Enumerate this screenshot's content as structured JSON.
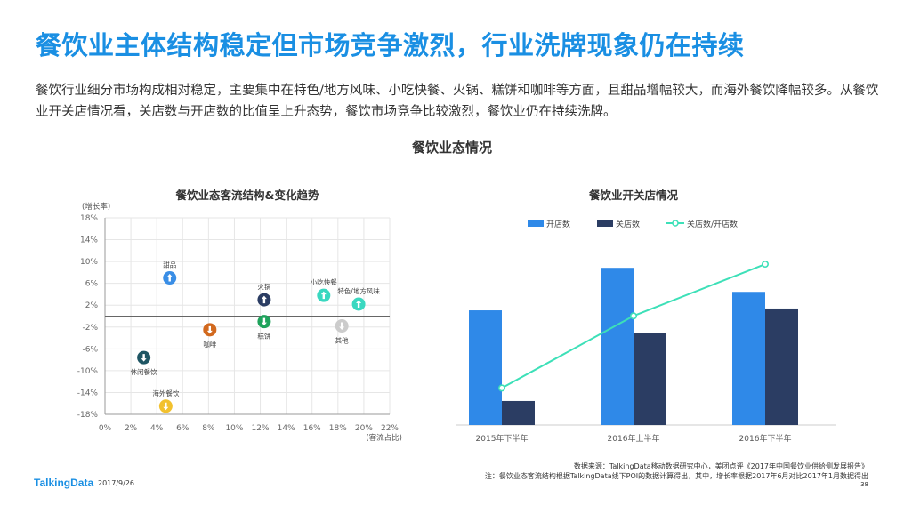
{
  "page": {
    "title": "餐饮业主体结构稳定但市场竞争激烈，行业洗牌现象仍在持续",
    "description": "餐饮行业细分市场构成相对稳定，主要集中在特色/地方风味、小吃快餐、火锅、糕饼和咖啡等方面，且甜品增幅较大，而海外餐饮降幅较多。从餐饮业开关店情况看，关店数与开店数的比值呈上升态势，餐饮市场竞争比较激烈，餐饮业仍在持续洗牌。",
    "section_title": "餐饮业态情况",
    "footer": {
      "logo": "TalkingData",
      "date": "2017/9/26",
      "source": "数据来源：TalkingData移动数据研究中心，美团点评《2017年中国餐饮业供给侧发展报告》",
      "note": "注：餐饮业态客流结构根据TalkingData线下POI的数据计算得出，其中，增长率根据2017年6月对比2017年1月数据得出",
      "page_number": "38"
    }
  },
  "chart_data": [
    {
      "type": "scatter",
      "title": "餐饮业态客流结构&变化趋势",
      "xlabel": "(客流占比)",
      "ylabel": "(增长率)",
      "xlim": [
        0,
        22
      ],
      "ylim": [
        -18,
        18
      ],
      "x_ticks": [
        "0%",
        "2%",
        "4%",
        "6%",
        "8%",
        "10%",
        "12%",
        "14%",
        "16%",
        "18%",
        "20%",
        "22%"
      ],
      "y_ticks": [
        "18%",
        "14%",
        "10%",
        "6%",
        "2%",
        "-2%",
        "-6%",
        "-10%",
        "-14%",
        "-18%"
      ],
      "grid": true,
      "points": [
        {
          "name": "甜品",
          "x": 5.0,
          "y": 7.0,
          "color": "#3a8ee6",
          "direction": "up",
          "label_pos": "above"
        },
        {
          "name": "火锅",
          "x": 12.3,
          "y": 3.0,
          "color": "#2b3d63",
          "direction": "up",
          "label_pos": "above"
        },
        {
          "name": "小吃快餐",
          "x": 16.9,
          "y": 3.8,
          "color": "#3ad8c0",
          "direction": "up",
          "label_pos": "above"
        },
        {
          "name": "特色/地方风味",
          "x": 19.6,
          "y": 2.2,
          "color": "#3ad8c0",
          "direction": "up",
          "label_pos": "above"
        },
        {
          "name": "糕饼",
          "x": 12.3,
          "y": -1.0,
          "color": "#1fa35c",
          "direction": "down",
          "label_pos": "below"
        },
        {
          "name": "其他",
          "x": 18.3,
          "y": -1.8,
          "color": "#cccccc",
          "direction": "down",
          "label_pos": "below"
        },
        {
          "name": "咖啡",
          "x": 8.1,
          "y": -2.5,
          "color": "#d2691e",
          "direction": "down",
          "label_pos": "below"
        },
        {
          "name": "休闲餐饮",
          "x": 3.0,
          "y": -7.6,
          "color": "#1e5563",
          "direction": "down",
          "label_pos": "below"
        },
        {
          "name": "海外餐饮",
          "x": 4.7,
          "y": -16.5,
          "color": "#f2c12e",
          "direction": "down",
          "label_pos": "above"
        }
      ]
    },
    {
      "type": "bar",
      "title": "餐饮业开关店情况",
      "categories": [
        "2015年下半年",
        "2016年上半年",
        "2016年下半年"
      ],
      "series": [
        {
          "name": "开店数",
          "values": [
            0.62,
            0.85,
            0.72
          ],
          "color": "#2f89e8",
          "kind": "bar"
        },
        {
          "name": "关店数",
          "values": [
            0.13,
            0.5,
            0.63
          ],
          "color": "#2b3d63",
          "kind": "bar"
        },
        {
          "name": "关店数/开店数",
          "values": [
            0.2,
            0.59,
            0.87
          ],
          "color": "#3de0b8",
          "kind": "line"
        }
      ],
      "legend": "top"
    }
  ]
}
